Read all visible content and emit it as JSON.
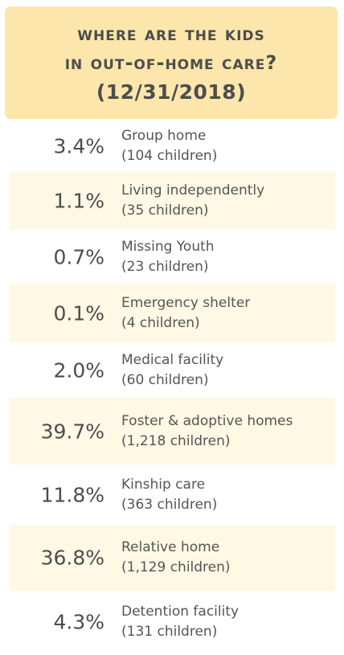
{
  "header": {
    "line1": "Where are the kids",
    "line2": "in out-of-home care?",
    "line3": "(12/31/2018)"
  },
  "chart_data": {
    "type": "table",
    "title": "Where are the kids in out-of-home care? (12/31/2018)",
    "rows": [
      {
        "percent": "3.4%",
        "category": "Group home",
        "count": "(104 children)"
      },
      {
        "percent": "1.1%",
        "category": "Living independently",
        "count": "(35 children)"
      },
      {
        "percent": "0.7%",
        "category": "Missing Youth",
        "count": "(23 children)"
      },
      {
        "percent": "0.1%",
        "category": "Emergency shelter",
        "count": "(4 children)"
      },
      {
        "percent": "2.0%",
        "category": "Medical facility",
        "count": "(60 children)"
      },
      {
        "percent": "39.7%",
        "category": "Foster & adoptive homes",
        "count": " (1,218 children)"
      },
      {
        "percent": "11.8%",
        "category": "Kinship care",
        "count": "(363 children)"
      },
      {
        "percent": "36.8%",
        "category": "Relative home",
        "count": "(1,129 children)"
      },
      {
        "percent": "4.3%",
        "category": "Detention facility",
        "count": "(131 children)"
      }
    ]
  },
  "colors": {
    "header_bg": "#fce6ac",
    "alt_row_bg": "#fef8e4",
    "text": "#4d4d4d"
  }
}
